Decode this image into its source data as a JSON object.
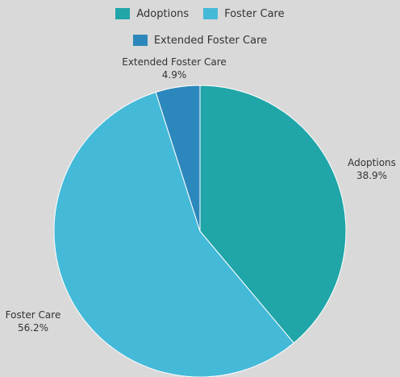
{
  "chart_data": {
    "type": "pie",
    "title": "",
    "legend_position": "top",
    "slices": [
      {
        "label": "Adoptions",
        "value": 38.9,
        "display": "38.9%",
        "color": "#20a5a8"
      },
      {
        "label": "Foster Care",
        "value": 56.2,
        "display": "56.2%",
        "color": "#45b9d8"
      },
      {
        "label": "Extended Foster Care",
        "value": 4.9,
        "display": "4.9%",
        "color": "#2c88bc"
      }
    ]
  }
}
